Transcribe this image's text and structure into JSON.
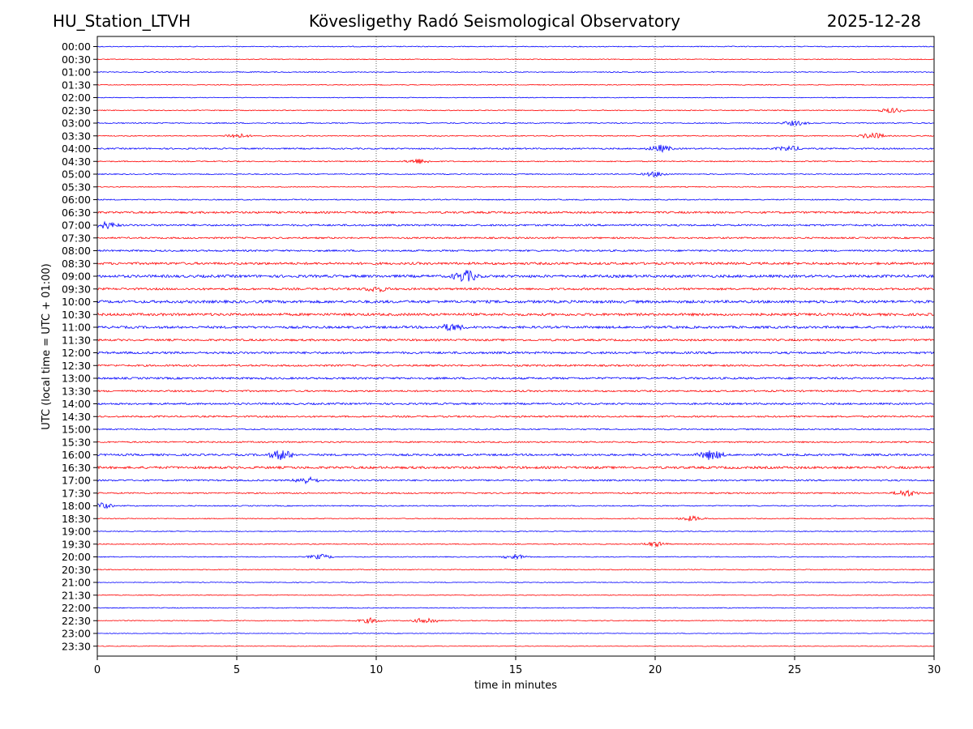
{
  "header": {
    "station": "HU_Station_LTVH",
    "observatory": "Kövesligethy Radó Seismological Observatory",
    "date": "2025-12-28"
  },
  "chart_data": {
    "type": "line",
    "title": "Kövesligethy Radó Seismological Observatory",
    "xlabel": "time in minutes",
    "ylabel": "UTC (local time = UTC + 01:00)",
    "xlim": [
      0,
      30
    ],
    "x_ticks": [
      "0",
      "5",
      "10",
      "15",
      "20",
      "25",
      "30"
    ],
    "grid": "vertical dotted lines at each 5 minutes",
    "row_colors": [
      "#0000ff",
      "#ff0000"
    ],
    "rows": [
      "00:00",
      "00:30",
      "01:00",
      "01:30",
      "02:00",
      "02:30",
      "03:00",
      "03:30",
      "04:00",
      "04:30",
      "05:00",
      "05:30",
      "06:00",
      "06:30",
      "07:00",
      "07:30",
      "08:00",
      "08:30",
      "09:00",
      "09:30",
      "10:00",
      "10:30",
      "11:00",
      "11:30",
      "12:00",
      "12:30",
      "13:00",
      "13:30",
      "14:00",
      "14:30",
      "15:00",
      "15:30",
      "16:00",
      "16:30",
      "17:00",
      "17:30",
      "18:00",
      "18:30",
      "19:00",
      "19:30",
      "20:00",
      "20:30",
      "21:00",
      "21:30",
      "22:00",
      "22:30",
      "23:00",
      "23:30"
    ],
    "noise_level": [
      1.0,
      0.9,
      1.0,
      0.9,
      0.8,
      1.0,
      1.2,
      1.1,
      1.6,
      1.2,
      1.1,
      1.0,
      1.2,
      2.2,
      2.0,
      1.8,
      1.9,
      2.6,
      2.9,
      2.3,
      3.0,
      2.8,
      2.6,
      2.2,
      2.4,
      2.0,
      2.2,
      1.9,
      2.0,
      1.8,
      1.4,
      1.6,
      2.2,
      2.6,
      1.8,
      1.5,
      1.2,
      1.0,
      0.9,
      1.0,
      1.0,
      1.0,
      0.8,
      0.8,
      1.0,
      1.0,
      0.7,
      0.7
    ],
    "events": [
      {
        "row": "02:30",
        "minute": 28.5,
        "amp": 3
      },
      {
        "row": "03:00",
        "minute": 25.0,
        "amp": 3
      },
      {
        "row": "03:30",
        "minute": 5.0,
        "amp": 3
      },
      {
        "row": "03:30",
        "minute": 27.8,
        "amp": 4
      },
      {
        "row": "04:00",
        "minute": 20.2,
        "amp": 4
      },
      {
        "row": "04:00",
        "minute": 24.8,
        "amp": 3
      },
      {
        "row": "04:30",
        "minute": 11.5,
        "amp": 3
      },
      {
        "row": "05:00",
        "minute": 20.0,
        "amp": 3
      },
      {
        "row": "07:00",
        "minute": 0.3,
        "amp": 4
      },
      {
        "row": "09:00",
        "minute": 13.2,
        "amp": 7
      },
      {
        "row": "09:30",
        "minute": 10.0,
        "amp": 3
      },
      {
        "row": "11:00",
        "minute": 12.7,
        "amp": 4
      },
      {
        "row": "16:00",
        "minute": 6.6,
        "amp": 6
      },
      {
        "row": "16:00",
        "minute": 22.0,
        "amp": 6
      },
      {
        "row": "17:00",
        "minute": 7.5,
        "amp": 4
      },
      {
        "row": "17:30",
        "minute": 29.0,
        "amp": 4
      },
      {
        "row": "18:00",
        "minute": 0.1,
        "amp": 4
      },
      {
        "row": "18:30",
        "minute": 21.3,
        "amp": 3
      },
      {
        "row": "19:30",
        "minute": 20.0,
        "amp": 3
      },
      {
        "row": "20:00",
        "minute": 8.0,
        "amp": 3
      },
      {
        "row": "20:00",
        "minute": 15.0,
        "amp": 3
      },
      {
        "row": "22:30",
        "minute": 9.8,
        "amp": 3
      },
      {
        "row": "22:30",
        "minute": 11.8,
        "amp": 4
      }
    ]
  }
}
